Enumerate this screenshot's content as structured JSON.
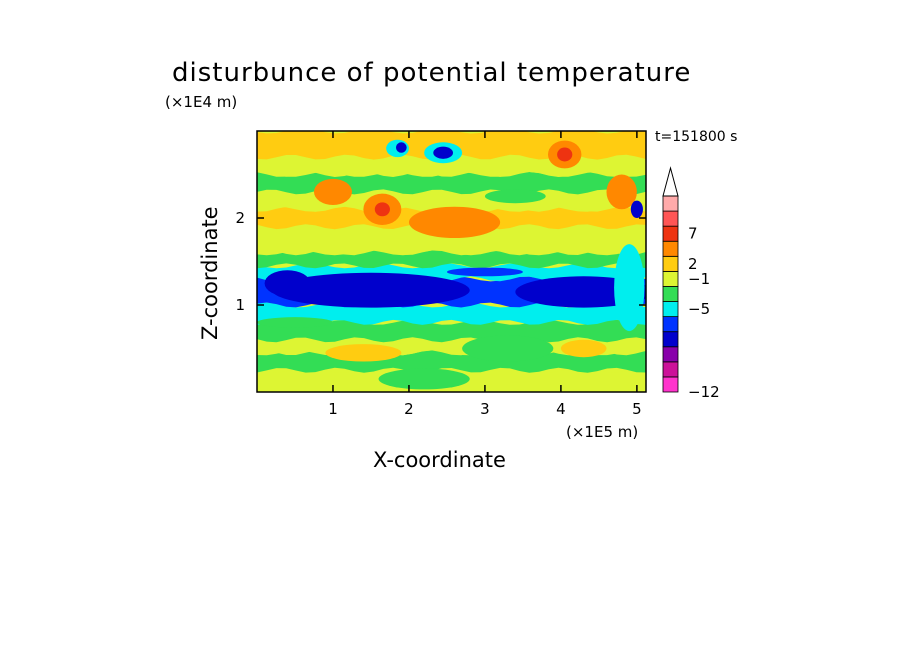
{
  "chart_data": {
    "type": "heatmap",
    "title": "disturbunce of potential temperature",
    "xlabel": "X-coordinate",
    "ylabel": "Z-coordinate",
    "x_unit": "(×1E5 m)",
    "y_unit": "(×1E4 m)",
    "time_label": "t=151800 s",
    "x_ticks": [
      1,
      2,
      3,
      4,
      5
    ],
    "y_ticks": [
      1,
      2
    ],
    "xlim": [
      0,
      5.12
    ],
    "ylim": [
      0,
      3.0
    ],
    "colorbar": {
      "tick_labels": [
        "7",
        "2",
        "−1",
        "−5",
        "−12"
      ],
      "tick_values": [
        7,
        2,
        -1,
        -5,
        -12
      ],
      "extend": "max",
      "colors": [
        "#ff33cc",
        "#cc1199",
        "#8800aa",
        "#0000cc",
        "#0033ff",
        "#00eeee",
        "#33dd55",
        "#ddf533",
        "#ffcc11",
        "#ff8800",
        "#ee3311",
        "#ff5555",
        "#ffaaaa"
      ]
    },
    "palette": {
      "strong_neg": "#0000cc",
      "neg_mid": "#0033ff",
      "neg_weak": "#00eeee",
      "near_zero": "#33dd55",
      "pos_weak": "#ddf533",
      "pos_mid": "#ffcc11",
      "pos_strong": "#ff8800",
      "pos_very_strong": "#ee3311"
    },
    "field_bands": [
      {
        "z": [
          0.0,
          0.25
        ],
        "level": "pos_weak"
      },
      {
        "z": [
          0.25,
          0.45
        ],
        "level": "near_zero"
      },
      {
        "z": [
          0.45,
          0.6
        ],
        "level": "pos_weak"
      },
      {
        "z": [
          0.6,
          0.8
        ],
        "level": "near_zero"
      },
      {
        "z": [
          0.8,
          1.0
        ],
        "level": "neg_weak"
      },
      {
        "z": [
          1.0,
          1.3
        ],
        "level": "neg_mid"
      },
      {
        "z": [
          1.3,
          1.45
        ],
        "level": "neg_weak"
      },
      {
        "z": [
          1.45,
          1.6
        ],
        "level": "near_zero"
      },
      {
        "z": [
          1.6,
          1.9
        ],
        "level": "pos_weak"
      },
      {
        "z": [
          1.9,
          2.1
        ],
        "level": "pos_mid"
      },
      {
        "z": [
          2.1,
          2.3
        ],
        "level": "pos_weak"
      },
      {
        "z": [
          2.3,
          2.5
        ],
        "level": "near_zero"
      },
      {
        "z": [
          2.5,
          2.7
        ],
        "level": "pos_weak"
      },
      {
        "z": [
          2.7,
          3.0
        ],
        "level": "pos_mid"
      }
    ],
    "features": [
      {
        "x": 1.5,
        "z": 1.17,
        "rx": 1.3,
        "rz": 0.2,
        "level": "strong_neg"
      },
      {
        "x": 4.3,
        "z": 1.15,
        "rx": 0.9,
        "rz": 0.18,
        "level": "strong_neg"
      },
      {
        "x": 0.4,
        "z": 1.25,
        "rx": 0.3,
        "rz": 0.15,
        "level": "strong_neg"
      },
      {
        "x": 2.45,
        "z": 2.75,
        "rx": 0.25,
        "rz": 0.12,
        "level": "neg_weak"
      },
      {
        "x": 2.45,
        "z": 2.75,
        "rx": 0.13,
        "rz": 0.07,
        "level": "strong_neg"
      },
      {
        "x": 1.85,
        "z": 2.8,
        "rx": 0.15,
        "rz": 0.1,
        "level": "neg_weak"
      },
      {
        "x": 1.9,
        "z": 2.81,
        "rx": 0.07,
        "rz": 0.06,
        "level": "strong_neg"
      },
      {
        "x": 4.05,
        "z": 2.73,
        "rx": 0.22,
        "rz": 0.16,
        "level": "pos_strong"
      },
      {
        "x": 4.05,
        "z": 2.73,
        "rx": 0.1,
        "rz": 0.08,
        "level": "pos_very_strong"
      },
      {
        "x": 1.65,
        "z": 2.1,
        "rx": 0.25,
        "rz": 0.18,
        "level": "pos_strong"
      },
      {
        "x": 1.65,
        "z": 2.1,
        "rx": 0.1,
        "rz": 0.08,
        "level": "pos_very_strong"
      },
      {
        "x": 2.6,
        "z": 1.95,
        "rx": 0.6,
        "rz": 0.18,
        "level": "pos_strong"
      },
      {
        "x": 3.4,
        "z": 2.25,
        "rx": 0.4,
        "rz": 0.08,
        "level": "near_zero"
      },
      {
        "x": 1.0,
        "z": 2.3,
        "rx": 0.25,
        "rz": 0.15,
        "level": "pos_strong"
      },
      {
        "x": 4.8,
        "z": 2.3,
        "rx": 0.2,
        "rz": 0.2,
        "level": "pos_strong"
      },
      {
        "x": 5.0,
        "z": 2.1,
        "rx": 0.08,
        "rz": 0.1,
        "level": "strong_neg"
      },
      {
        "x": 4.9,
        "z": 1.2,
        "rx": 0.2,
        "rz": 0.5,
        "level": "neg_weak"
      },
      {
        "x": 1.4,
        "z": 0.45,
        "rx": 0.5,
        "rz": 0.1,
        "level": "pos_mid"
      },
      {
        "x": 3.3,
        "z": 0.5,
        "rx": 0.6,
        "rz": 0.15,
        "level": "near_zero"
      },
      {
        "x": 4.3,
        "z": 0.5,
        "rx": 0.3,
        "rz": 0.1,
        "level": "pos_mid"
      },
      {
        "x": 0.5,
        "z": 0.8,
        "rx": 0.5,
        "rz": 0.06,
        "level": "near_zero"
      },
      {
        "x": 2.2,
        "z": 0.15,
        "rx": 0.6,
        "rz": 0.12,
        "level": "near_zero"
      },
      {
        "x": 3.0,
        "z": 1.38,
        "rx": 0.5,
        "rz": 0.05,
        "level": "neg_mid"
      }
    ]
  }
}
